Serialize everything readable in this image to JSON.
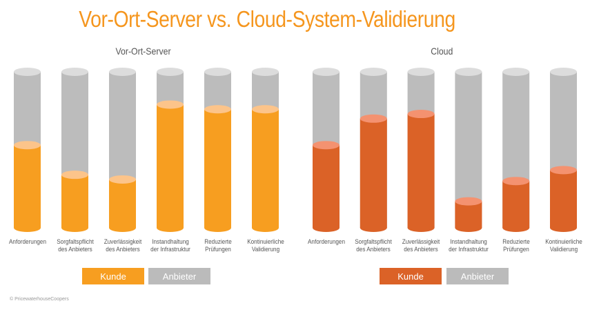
{
  "title": "Vor-Ort-Server vs. Cloud-System-Validierung",
  "copyright": "© PricewaterhouseCoopers",
  "colors": {
    "title": "#f5961e",
    "empty": "#bcbcbc",
    "empty_top": "#dcdcdc",
    "onprem_fill": "#f79e20",
    "onprem_top": "#fcc48a",
    "cloud_fill": "#db6227",
    "cloud_top": "#f49270",
    "anbieter_legend": "#bbbbbb"
  },
  "chart_data": [
    {
      "type": "bar",
      "subtype": "stacked-cylinder",
      "title": "Vor-Ort-Server",
      "categories": [
        "Anforderungen",
        "Sorgfaltspflicht\ndes Anbieters",
        "Zuverlässigkeit\ndes Anbieters",
        "Instandhaltung\nder Infrastruktur",
        "Reduzierte\nPrüfungen",
        "Kontinuierliche\nValidierung"
      ],
      "series": [
        {
          "name": "Kunde",
          "values": [
            53,
            34,
            31,
            79,
            76,
            76
          ]
        },
        {
          "name": "Anbieter",
          "values": [
            47,
            66,
            69,
            21,
            24,
            24
          ]
        }
      ],
      "ylim": [
        0,
        100
      ],
      "unit": "percent (estimated)",
      "legend": [
        "Kunde",
        "Anbieter"
      ],
      "legend_position": "bottom",
      "grid": false
    },
    {
      "type": "bar",
      "subtype": "stacked-cylinder",
      "title": "Cloud",
      "categories": [
        "Anforderungen",
        "Sorgfaltspflicht\ndes Anbieters",
        "Zuverlässigkeit\ndes Anbieters",
        "Instandhaltung\nder Infrastruktur",
        "Reduzierte\nPrüfungen",
        "Kontinuierliche\nValidierung"
      ],
      "series": [
        {
          "name": "Kunde",
          "values": [
            53,
            70,
            73,
            17,
            30,
            37
          ]
        },
        {
          "name": "Anbieter",
          "values": [
            47,
            30,
            27,
            83,
            70,
            63
          ]
        }
      ],
      "ylim": [
        0,
        100
      ],
      "unit": "percent (estimated)",
      "legend": [
        "Kunde",
        "Anbieter"
      ],
      "legend_position": "bottom",
      "grid": false
    }
  ]
}
